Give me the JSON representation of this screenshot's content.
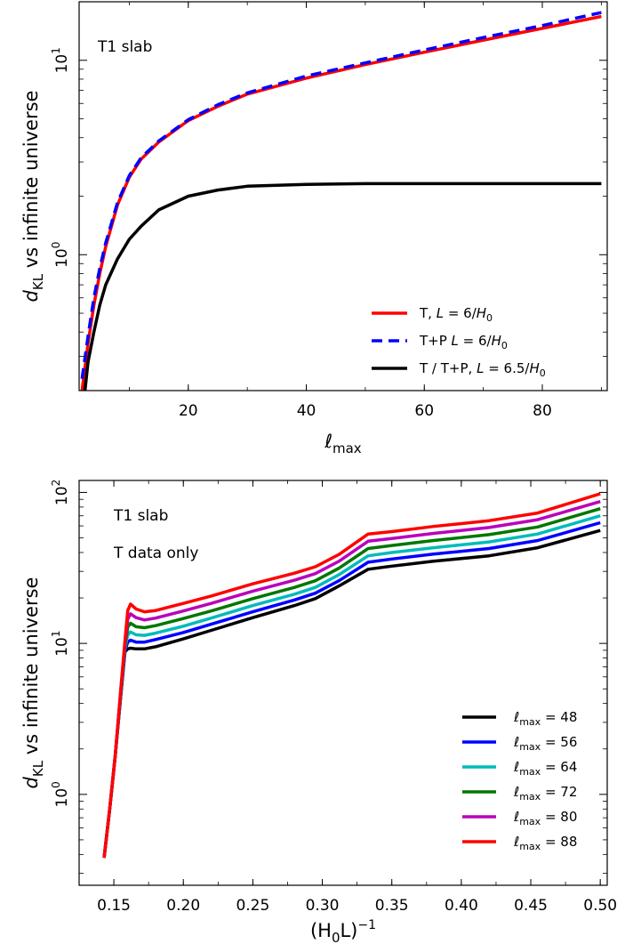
{
  "chart_data": [
    {
      "type": "line",
      "xlabel": "ℓ",
      "xlabel_sub": "max",
      "ylabel": "d",
      "ylabel_sub": "KL",
      "ylabel_rest": " vs infinite universe",
      "yscale": "log",
      "xlim": [
        1.5,
        91
      ],
      "ylim": [
        0.2,
        20
      ],
      "xticks": [
        20,
        40,
        60,
        80
      ],
      "xtick_labels": [
        "20",
        "40",
        "60",
        "80"
      ],
      "yticks": [
        1,
        10
      ],
      "ytick_labels": [
        {
          "base": "10",
          "exp": "0"
        },
        {
          "base": "10",
          "exp": "1"
        }
      ],
      "annotations": [
        "T1 slab"
      ],
      "legend_position": "lower-right",
      "series": [
        {
          "name": "T, L = 6/H₀",
          "label_parts": [
            "T, ",
            "L",
            " = 6/",
            "H",
            "0",
            ""
          ],
          "color": "#ff0000",
          "dash": "solid",
          "x": [
            2,
            3,
            4,
            5,
            6,
            8,
            10,
            12,
            15,
            20,
            25,
            30,
            40,
            50,
            60,
            70,
            80,
            90
          ],
          "y": [
            0.2,
            0.35,
            0.55,
            0.8,
            1.1,
            1.8,
            2.5,
            3.1,
            3.8,
            4.9,
            5.8,
            6.7,
            8.1,
            9.5,
            11.0,
            12.7,
            14.6,
            16.8
          ]
        },
        {
          "name": "T+P L = 6/H₀",
          "label_parts": [
            "T+P ",
            "L",
            " = 6/",
            "H",
            "0",
            ""
          ],
          "color": "#0000ff",
          "dash": "dashed",
          "x": [
            2,
            3,
            4,
            5,
            6,
            8,
            10,
            12,
            15,
            20,
            25,
            30,
            40,
            50,
            60,
            70,
            80,
            90
          ],
          "y": [
            0.23,
            0.38,
            0.6,
            0.85,
            1.15,
            1.85,
            2.55,
            3.15,
            3.85,
            4.95,
            5.9,
            6.8,
            8.3,
            9.7,
            11.3,
            13.1,
            15.1,
            17.6
          ]
        },
        {
          "name": "T / T+P, L = 6.5/H₀",
          "label_parts": [
            "T / T+P, ",
            "L",
            " = 6.5/",
            "H",
            "0",
            ""
          ],
          "color": "#000000",
          "dash": "solid",
          "x": [
            2.5,
            3,
            4,
            5,
            6,
            8,
            10,
            12,
            15,
            20,
            25,
            30,
            40,
            50,
            60,
            70,
            80,
            90
          ],
          "y": [
            0.2,
            0.28,
            0.4,
            0.55,
            0.7,
            0.95,
            1.2,
            1.4,
            1.7,
            2.0,
            2.15,
            2.25,
            2.3,
            2.32,
            2.32,
            2.32,
            2.32,
            2.32
          ]
        }
      ]
    },
    {
      "type": "line",
      "xlabel": "(H",
      "xlabel_sub": "0",
      "xlabel_mid": "L)",
      "xlabel_sup": "−1",
      "ylabel": "d",
      "ylabel_sub": "KL",
      "ylabel_rest": " vs infinite universe",
      "yscale": "log",
      "xlim": [
        0.125,
        0.505
      ],
      "ylim": [
        0.25,
        120
      ],
      "xticks": [
        0.15,
        0.2,
        0.25,
        0.3,
        0.35,
        0.4,
        0.45,
        0.5
      ],
      "xtick_labels": [
        "0.15",
        "0.20",
        "0.25",
        "0.30",
        "0.35",
        "0.40",
        "0.45",
        "0.50"
      ],
      "yticks": [
        1,
        10,
        100
      ],
      "ytick_labels": [
        {
          "base": "10",
          "exp": "0"
        },
        {
          "base": "10",
          "exp": "1"
        },
        {
          "base": "10",
          "exp": "2"
        }
      ],
      "annotations": [
        "T1 slab",
        "T data only"
      ],
      "legend_position": "lower-right",
      "x": [
        0.143,
        0.147,
        0.151,
        0.155,
        0.158,
        0.16,
        0.162,
        0.166,
        0.172,
        0.18,
        0.2,
        0.22,
        0.25,
        0.28,
        0.295,
        0.312,
        0.333,
        0.35,
        0.38,
        0.42,
        0.455,
        0.5
      ],
      "series": [
        {
          "name": "ℓmax = 48",
          "label_value": "48",
          "color": "#000000",
          "y": [
            0.38,
            0.8,
            1.8,
            4.5,
            8.8,
            9.2,
            9.3,
            9.2,
            9.2,
            9.5,
            10.7,
            12.2,
            14.8,
            17.8,
            19.8,
            24.0,
            31.0,
            32.5,
            35.0,
            38.0,
            43.0,
            56.0
          ]
        },
        {
          "name": "ℓmax = 56",
          "label_value": "56",
          "color": "#0000ff",
          "y": [
            0.38,
            0.8,
            1.8,
            4.6,
            9.0,
            10.2,
            10.5,
            10.2,
            10.2,
            10.6,
            11.8,
            13.4,
            16.2,
            19.4,
            21.5,
            26.0,
            34.5,
            36.2,
            39.0,
            42.5,
            48.0,
            63.0
          ]
        },
        {
          "name": "ℓmax = 64",
          "label_value": "64",
          "color": "#00bbbb",
          "y": [
            0.38,
            0.8,
            1.8,
            4.7,
            9.3,
            11.4,
            11.9,
            11.4,
            11.3,
            11.7,
            13.0,
            14.7,
            17.8,
            21.2,
            23.5,
            28.5,
            38.0,
            40.0,
            43.0,
            47.0,
            53.0,
            70.0
          ]
        },
        {
          "name": "ℓmax = 72",
          "label_value": "72",
          "color": "#007700",
          "y": [
            0.38,
            0.8,
            1.8,
            4.8,
            9.6,
            12.8,
            13.6,
            12.9,
            12.7,
            13.1,
            14.6,
            16.4,
            19.8,
            23.5,
            26.0,
            31.5,
            42.5,
            44.5,
            48.0,
            52.5,
            59.0,
            78.0
          ]
        },
        {
          "name": "ℓmax = 80",
          "label_value": "80",
          "color": "#bb00bb",
          "y": [
            0.38,
            0.8,
            1.8,
            4.9,
            10.0,
            14.5,
            15.7,
            14.8,
            14.3,
            14.7,
            16.4,
            18.4,
            22.2,
            26.2,
            29.0,
            35.0,
            47.5,
            49.5,
            53.5,
            58.5,
            66.0,
            87.0
          ]
        },
        {
          "name": "ℓmax = 88",
          "label_value": "88",
          "color": "#ff0000",
          "y": [
            0.38,
            0.8,
            1.8,
            5.0,
            10.5,
            16.5,
            18.2,
            16.9,
            16.2,
            16.5,
            18.4,
            20.6,
            24.8,
            29.2,
            32.2,
            38.8,
            53.0,
            55.0,
            59.5,
            65.0,
            73.0,
            98.0
          ]
        }
      ]
    }
  ]
}
